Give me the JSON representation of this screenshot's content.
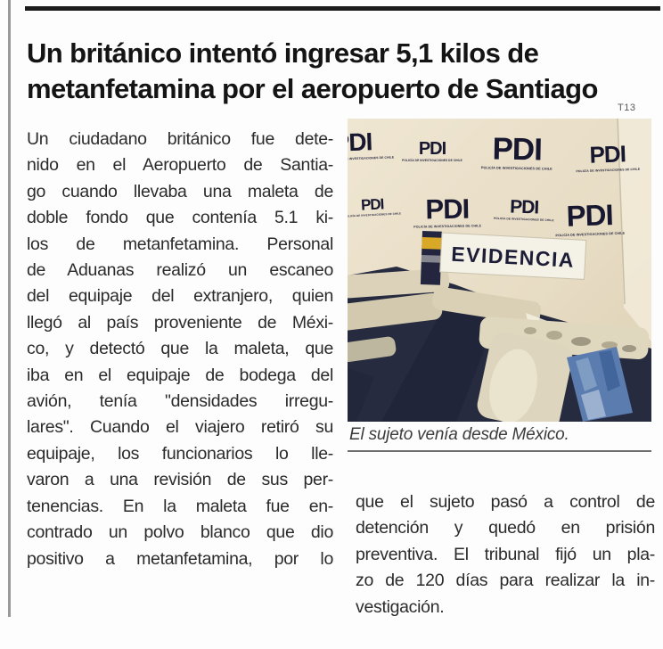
{
  "colors": {
    "page_bg": "#fdfdfd",
    "ink": "#141414",
    "body_text": "#2b2b2b",
    "rule_gray": "#9a9a9a",
    "photo_beige": "#eae0ca",
    "pdi_navy": "#171730",
    "table_navy": "#262b40",
    "bag_beige": "#dbd2b9",
    "bag_blue": "#5b7cae",
    "sign_white": "#f4f1e7",
    "marker_yellow": "#d9a827",
    "caption_gray": "#3c3c3c"
  },
  "page": {
    "credit": "T13"
  },
  "headline": {
    "line1": "Un británico intentó ingresar 5,1 kilos de",
    "line2": "metanfetamina por el aeropuerto de Santiago"
  },
  "article": {
    "left_column_lines": [
      "Un ciudadano británico fue dete-",
      "nido en el Aeropuerto de Santia-",
      "go cuando llevaba una maleta de",
      "doble fondo que contenía 5.1 ki-",
      "los de metanfetamina. Personal",
      "de Aduanas realizó un escaneo",
      "del equipaje del extranjero, quien",
      "llegó al país proveniente de Méxi-",
      "co, y detectó que la maleta, que",
      "iba en el equipaje de bodega del",
      "avión, tenía \"densidades irregu-",
      "lares\". Cuando el viajero retiró su",
      "equipaje, los funcionarios lo lle-",
      "varon a una revisión de sus per-",
      "tenencias. En la maleta fue en-",
      "contrado un polvo blanco que dio",
      "positivo a metanfetamina, por lo"
    ],
    "right_column_lines": [
      "que el sujeto pasó a control de",
      "detención y quedó en prisión",
      "preventiva. El tribunal fijó un pla-",
      "zo de 120 días para realizar la in-",
      "vestigación."
    ]
  },
  "photo": {
    "pdi_label": "PDI",
    "pdi_subtext": "POLICÍA DE INVESTIGACIONES DE CHILE",
    "evidence_sign": "EVIDENCIA",
    "caption": "El sujeto venía desde México."
  }
}
